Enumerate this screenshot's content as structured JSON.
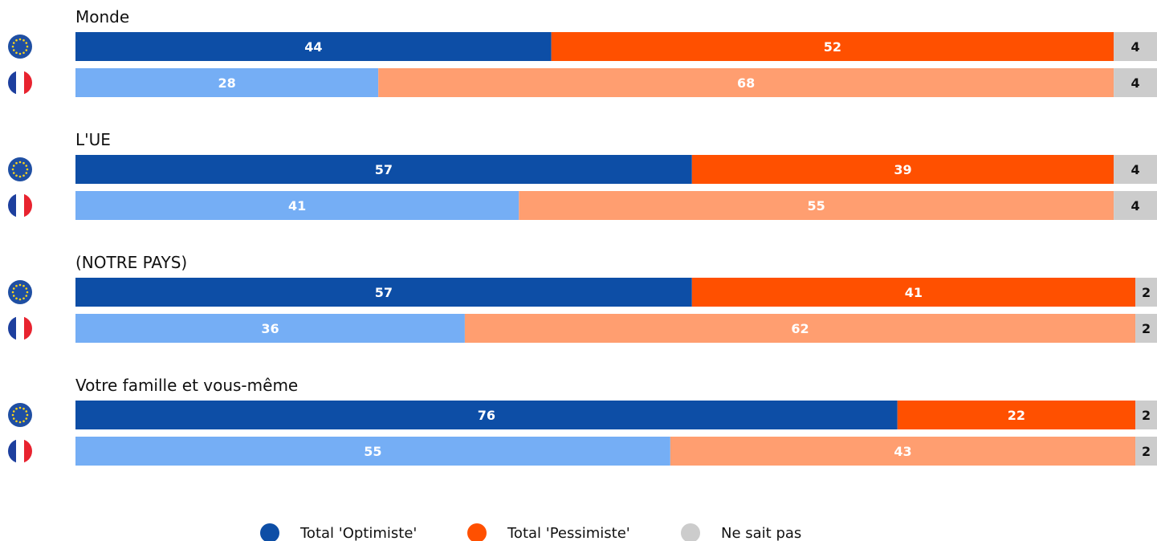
{
  "chart_data": {
    "type": "bar",
    "orientation": "horizontal-stacked-100",
    "categories_order": [
      "optimiste",
      "pessimiste",
      "nsp"
    ],
    "legend": [
      {
        "key": "optimiste",
        "label": "Total 'Optimiste'",
        "color": "#0d4ea6"
      },
      {
        "key": "pessimiste",
        "label": "Total 'Pessimiste'",
        "color": "#ff5000"
      },
      {
        "key": "nsp",
        "label": "Ne sait pas",
        "color": "#cccccc"
      }
    ],
    "row_kinds": [
      {
        "key": "eu",
        "icon": "eu-flag-icon",
        "colors": {
          "optimiste": "#0d4ea6",
          "pessimiste": "#ff5000",
          "nsp": "#cccccc"
        }
      },
      {
        "key": "fr",
        "icon": "france-flag-icon",
        "colors": {
          "optimiste": "#75aef5",
          "pessimiste": "#ff9e70",
          "nsp": "#cccccc"
        }
      }
    ],
    "groups": [
      {
        "title": "Monde",
        "rows": [
          {
            "kind": "eu",
            "values": {
              "optimiste": 44,
              "pessimiste": 52,
              "nsp": 4
            }
          },
          {
            "kind": "fr",
            "values": {
              "optimiste": 28,
              "pessimiste": 68,
              "nsp": 4
            }
          }
        ]
      },
      {
        "title": "L'UE",
        "rows": [
          {
            "kind": "eu",
            "values": {
              "optimiste": 57,
              "pessimiste": 39,
              "nsp": 4
            }
          },
          {
            "kind": "fr",
            "values": {
              "optimiste": 41,
              "pessimiste": 55,
              "nsp": 4
            }
          }
        ]
      },
      {
        "title": "(NOTRE PAYS)",
        "rows": [
          {
            "kind": "eu",
            "values": {
              "optimiste": 57,
              "pessimiste": 41,
              "nsp": 2
            }
          },
          {
            "kind": "fr",
            "values": {
              "optimiste": 36,
              "pessimiste": 62,
              "nsp": 2
            }
          }
        ]
      },
      {
        "title": "Votre famille et vous-même",
        "rows": [
          {
            "kind": "eu",
            "values": {
              "optimiste": 76,
              "pessimiste": 22,
              "nsp": 2
            }
          },
          {
            "kind": "fr",
            "values": {
              "optimiste": 55,
              "pessimiste": 43,
              "nsp": 2
            }
          }
        ]
      }
    ],
    "xlim": [
      0,
      100
    ],
    "grid": false,
    "legend_position": "bottom-center"
  }
}
